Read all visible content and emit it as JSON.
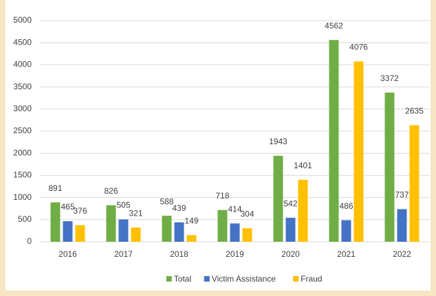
{
  "chart_data": {
    "type": "bar",
    "categories": [
      "2016",
      "2017",
      "2018",
      "2019",
      "2020",
      "2021",
      "2022"
    ],
    "series": [
      {
        "name": "Total",
        "color": "#70ad47",
        "values": [
          891,
          826,
          588,
          718,
          1943,
          4562,
          3372
        ]
      },
      {
        "name": "Victim Assistance",
        "color": "#4472c4",
        "values": [
          465,
          505,
          439,
          414,
          542,
          486,
          737
        ]
      },
      {
        "name": "Fraud",
        "color": "#ffc000",
        "values": [
          376,
          321,
          149,
          304,
          1401,
          4076,
          2635
        ]
      }
    ],
    "ylim": [
      0,
      5000
    ],
    "yticks": [
      0,
      500,
      1000,
      1500,
      2000,
      2500,
      3000,
      3500,
      4000,
      4500,
      5000
    ],
    "grid": true,
    "legend": "bottom"
  }
}
